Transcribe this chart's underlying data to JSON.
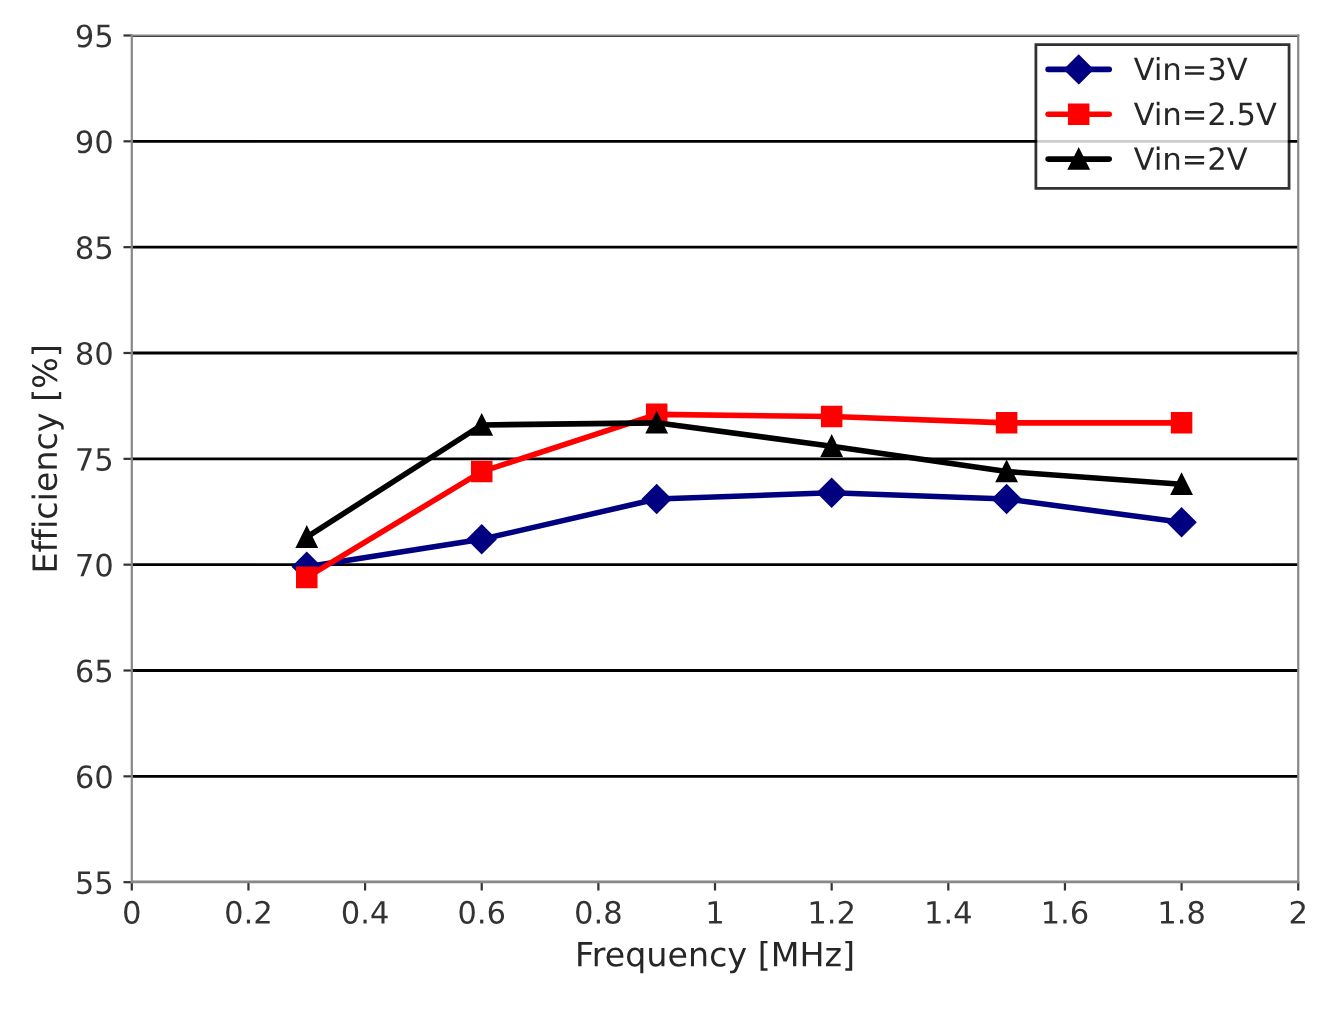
{
  "chart_data": {
    "type": "line",
    "xlabel": "Frequency [MHz]",
    "ylabel": "Efficiency [%]",
    "x": [
      0.3,
      0.6,
      0.9,
      1.2,
      1.5,
      1.8
    ],
    "series": [
      {
        "name": "Vin=3V",
        "color": "#000080",
        "marker": "diamond",
        "values": [
          69.9,
          71.2,
          73.1,
          73.4,
          73.1,
          72.0
        ]
      },
      {
        "name": "Vin=2.5V",
        "color": "#ff0000",
        "marker": "square",
        "values": [
          69.4,
          74.4,
          77.1,
          77.0,
          76.7,
          76.7
        ]
      },
      {
        "name": "Vin=2V",
        "color": "#000000",
        "marker": "triangle",
        "values": [
          71.3,
          76.6,
          76.7,
          75.6,
          74.4,
          73.8
        ]
      }
    ],
    "xlim": [
      0,
      2
    ],
    "xticks": [
      0,
      0.2,
      0.4,
      0.6,
      0.8,
      1,
      1.2,
      1.4,
      1.6,
      1.8,
      2
    ],
    "ylim": [
      55,
      95
    ],
    "yticks": [
      55,
      60,
      65,
      70,
      75,
      80,
      85,
      90,
      95
    ],
    "grid": "y",
    "legend": "top right",
    "line_style": "solid"
  }
}
